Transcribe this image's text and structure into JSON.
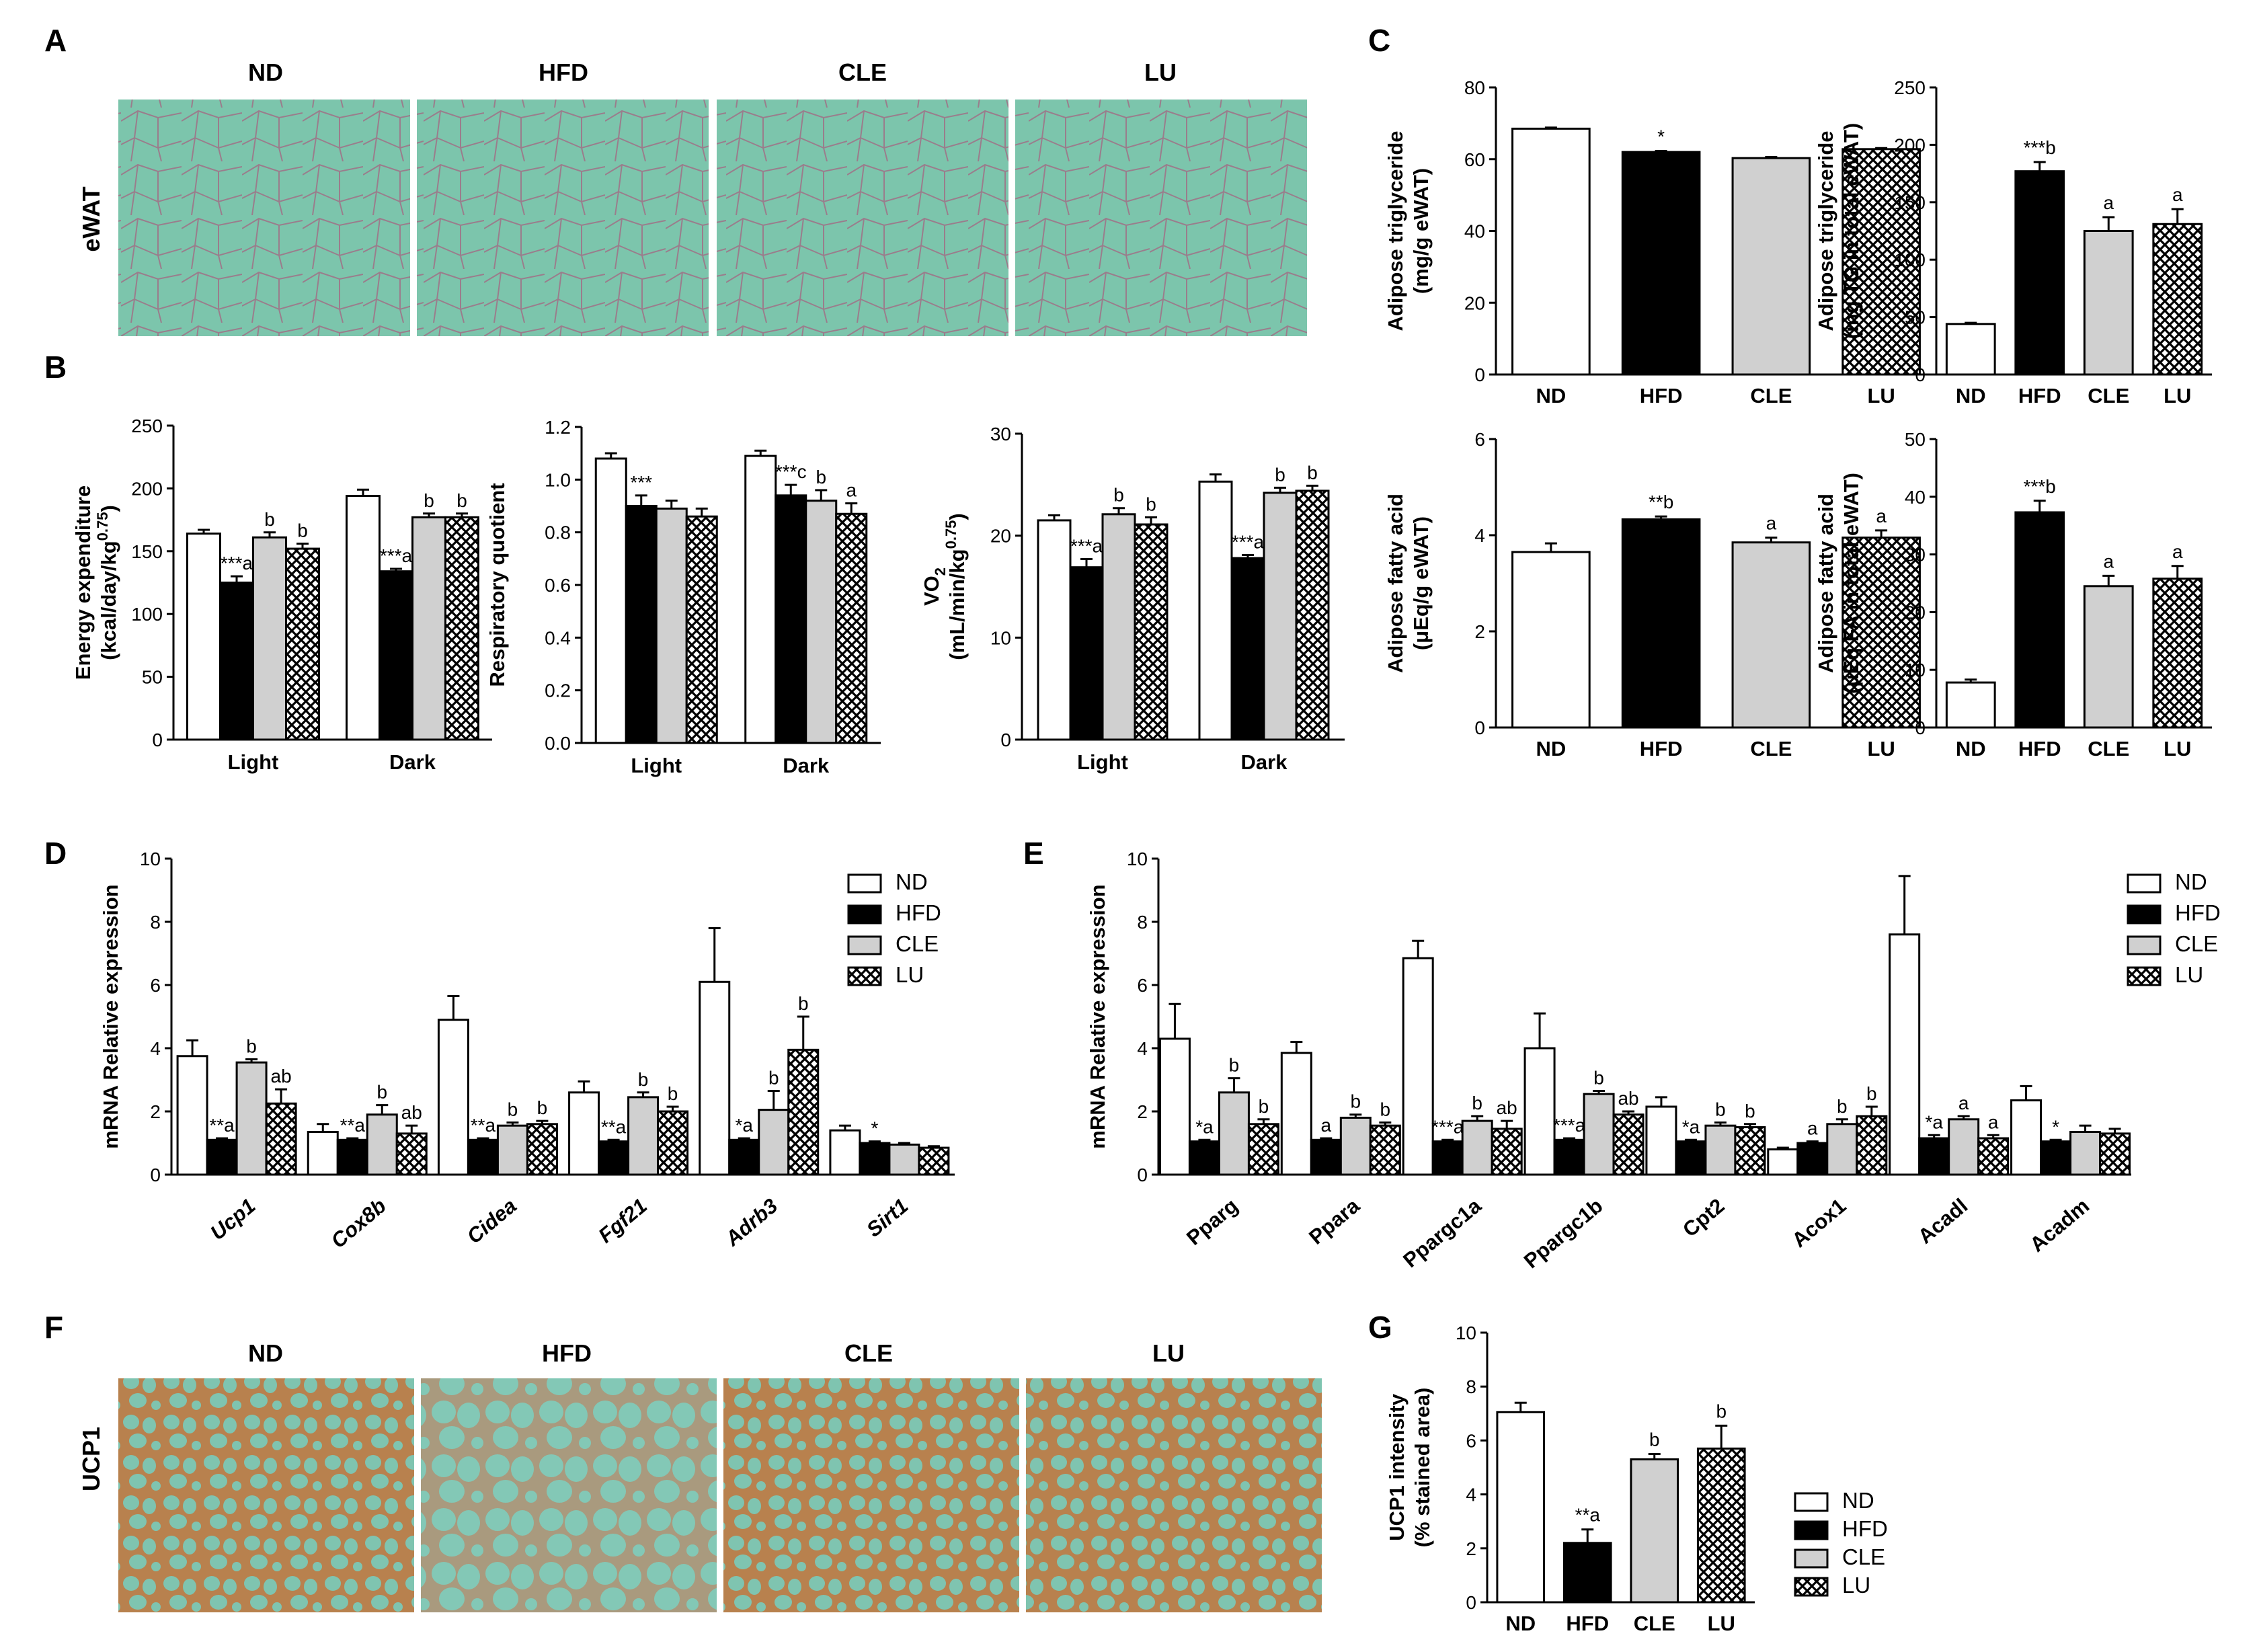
{
  "panel_labels": [
    "A",
    "B",
    "C",
    "D",
    "E",
    "F",
    "G"
  ],
  "groups": [
    "ND",
    "HFD",
    "CLE",
    "LU"
  ],
  "group_colors": {
    "ND": "#ffffff",
    "HFD": "#000000",
    "CLE": "#d0d0d0",
    "LU": "crosshatch"
  },
  "panel_a": {
    "row_label": "eWAT",
    "columns": [
      "ND",
      "HFD",
      "CLE",
      "LU"
    ]
  },
  "panel_f": {
    "row_label": "UCP1",
    "columns": [
      "ND",
      "HFD",
      "CLE",
      "LU"
    ]
  },
  "chart_data": [
    {
      "id": "B1",
      "type": "bar",
      "categories": [
        "Light",
        "Dark"
      ],
      "ylabel_lines": [
        "Energy expenditure",
        "(kcal/day/kg^0.75)"
      ],
      "ylim": [
        0,
        250
      ],
      "yticks": [
        0,
        50,
        100,
        150,
        200,
        250
      ],
      "series": [
        {
          "name": "ND",
          "values": [
            164,
            194
          ],
          "err": [
            3,
            5
          ]
        },
        {
          "name": "HFD",
          "values": [
            125,
            134
          ],
          "err": [
            5,
            2
          ]
        },
        {
          "name": "CLE",
          "values": [
            161,
            177
          ],
          "err": [
            4,
            3
          ]
        },
        {
          "name": "LU",
          "values": [
            152,
            177
          ],
          "err": [
            4,
            3
          ]
        }
      ],
      "annotations": [
        [
          "",
          "",
          ""
        ],
        [
          "***a",
          "***a"
        ],
        [
          "b",
          "b"
        ],
        [
          "b",
          "b"
        ]
      ]
    },
    {
      "id": "B2",
      "type": "bar",
      "categories": [
        "Light",
        "Dark"
      ],
      "ylabel_lines": [
        "Respiratory quotient"
      ],
      "ylim": [
        0,
        1.2
      ],
      "yticks": [
        "0.0",
        "0.2",
        "0.4",
        "0.6",
        "0.8",
        "1.0",
        "1.2"
      ],
      "series": [
        {
          "name": "ND",
          "values": [
            1.08,
            1.09
          ],
          "err": [
            0.02,
            0.02
          ]
        },
        {
          "name": "HFD",
          "values": [
            0.9,
            0.94
          ],
          "err": [
            0.04,
            0.04
          ]
        },
        {
          "name": "CLE",
          "values": [
            0.89,
            0.92
          ],
          "err": [
            0.03,
            0.04
          ]
        },
        {
          "name": "LU",
          "values": [
            0.86,
            0.87
          ],
          "err": [
            0.03,
            0.04
          ]
        }
      ],
      "annotations": [
        [
          "",
          ""
        ],
        [
          "***",
          "***c"
        ],
        [
          "",
          "b"
        ],
        [
          "",
          "a"
        ]
      ]
    },
    {
      "id": "B3",
      "type": "bar",
      "categories": [
        "Light",
        "Dark"
      ],
      "ylabel_lines": [
        "VO2",
        "(mL/min/kg^0.75)"
      ],
      "ylim": [
        0,
        30
      ],
      "yticks": [
        0,
        10,
        20,
        30
      ],
      "series": [
        {
          "name": "ND",
          "values": [
            21.5,
            25.3
          ],
          "err": [
            0.5,
            0.7
          ]
        },
        {
          "name": "HFD",
          "values": [
            16.9,
            17.8
          ],
          "err": [
            0.8,
            0.3
          ]
        },
        {
          "name": "CLE",
          "values": [
            22.1,
            24.2
          ],
          "err": [
            0.6,
            0.5
          ]
        },
        {
          "name": "LU",
          "values": [
            21.1,
            24.4
          ],
          "err": [
            0.7,
            0.5
          ]
        }
      ],
      "annotations": [
        [
          "",
          ""
        ],
        [
          "***a",
          "***a"
        ],
        [
          "b",
          "b"
        ],
        [
          "b",
          "b"
        ]
      ]
    },
    {
      "id": "C1",
      "type": "bar",
      "categories": [
        "ND",
        "HFD",
        "CLE",
        "LU"
      ],
      "ylabel_lines": [
        "Adipose triglyceride",
        "(mg/g eWAT)"
      ],
      "ylim": [
        0,
        80
      ],
      "yticks": [
        0,
        20,
        40,
        60,
        80
      ],
      "values": [
        68.5,
        62,
        60.3,
        62.8
      ],
      "err": [
        0.3,
        0.3,
        0.3,
        0.3
      ],
      "annotations": [
        "",
        "*",
        "",
        ""
      ]
    },
    {
      "id": "C2",
      "type": "bar",
      "categories": [
        "ND",
        "HFD",
        "CLE",
        "LU"
      ],
      "ylabel_lines": [
        "Adipose triglyceride",
        "(mg TG in total eWAT)"
      ],
      "ylim": [
        0,
        250
      ],
      "yticks": [
        0,
        50,
        100,
        150,
        200,
        250
      ],
      "values": [
        44,
        177,
        125,
        131
      ],
      "err": [
        1,
        8,
        12,
        13
      ],
      "annotations": [
        "",
        "***b",
        "a",
        "a"
      ]
    },
    {
      "id": "C3",
      "type": "bar",
      "categories": [
        "ND",
        "HFD",
        "CLE",
        "LU"
      ],
      "ylabel_lines": [
        "Adipose fatty acid",
        "(μEq/g eWAT)"
      ],
      "ylim": [
        0,
        6
      ],
      "yticks": [
        0,
        2,
        4,
        6
      ],
      "values": [
        3.65,
        4.33,
        3.85,
        3.95
      ],
      "err": [
        0.18,
        0.06,
        0.1,
        0.15
      ],
      "annotations": [
        "",
        "**b",
        "a",
        "a"
      ]
    },
    {
      "id": "C4",
      "type": "bar",
      "categories": [
        "ND",
        "HFD",
        "CLE",
        "LU"
      ],
      "ylabel_lines": [
        "Adipose fatty acid",
        "(μEq FA in total eWAT)"
      ],
      "ylim": [
        0,
        50
      ],
      "yticks": [
        0,
        10,
        20,
        30,
        40,
        50
      ],
      "values": [
        7.8,
        37.3,
        24.5,
        25.8
      ],
      "err": [
        0.5,
        2,
        1.8,
        2.2
      ],
      "annotations": [
        "",
        "***b",
        "a",
        "a"
      ]
    },
    {
      "id": "D",
      "type": "bar",
      "ylabel": "mRNA Relative expression",
      "ylim": [
        0,
        10
      ],
      "yticks": [
        0,
        2,
        4,
        6,
        8,
        10
      ],
      "categories": [
        "Ucp1",
        "Cox8b",
        "Cidea",
        "Fgf21",
        "Adrb3",
        "Sirt1"
      ],
      "series": [
        {
          "name": "ND",
          "values": [
            3.75,
            1.35,
            4.9,
            2.6,
            6.1,
            1.4
          ],
          "err": [
            0.5,
            0.25,
            0.75,
            0.35,
            1.7,
            0.15
          ]
        },
        {
          "name": "HFD",
          "values": [
            1.1,
            1.1,
            1.1,
            1.05,
            1.1,
            1.0
          ],
          "err": [
            0.05,
            0.05,
            0.05,
            0.05,
            0.05,
            0.05
          ]
        },
        {
          "name": "CLE",
          "values": [
            3.55,
            1.9,
            1.55,
            2.45,
            2.05,
            0.95
          ],
          "err": [
            0.1,
            0.3,
            0.1,
            0.15,
            0.6,
            0.05
          ]
        },
        {
          "name": "LU",
          "values": [
            2.25,
            1.3,
            1.6,
            2.0,
            3.95,
            0.85
          ],
          "err": [
            0.45,
            0.25,
            0.1,
            0.15,
            1.05,
            0.05
          ]
        }
      ],
      "annotations": [
        [
          "",
          "",
          "",
          "",
          "",
          ""
        ],
        [
          "**a",
          "**a",
          "**a",
          "**a",
          "*a",
          "*"
        ],
        [
          "b",
          "b",
          "b",
          "b",
          "b",
          ""
        ],
        [
          "ab",
          "ab",
          "b",
          "b",
          "b",
          ""
        ]
      ]
    },
    {
      "id": "E",
      "type": "bar",
      "ylabel": "mRNA Relative expression",
      "ylim": [
        0,
        10
      ],
      "yticks": [
        0,
        2,
        4,
        6,
        8,
        10
      ],
      "categories": [
        "Pparg",
        "Ppara",
        "Ppargc1a",
        "Ppargc1b",
        "Cpt2",
        "Acox1",
        "Acadl",
        "Acadm"
      ],
      "series": [
        {
          "name": "ND",
          "values": [
            4.3,
            3.85,
            6.85,
            4.0,
            2.15,
            0.8,
            7.6,
            2.35
          ],
          "err": [
            1.1,
            0.35,
            0.55,
            1.1,
            0.3,
            0.05,
            1.85,
            0.45
          ]
        },
        {
          "name": "HFD",
          "values": [
            1.05,
            1.1,
            1.05,
            1.1,
            1.05,
            1.0,
            1.15,
            1.05
          ],
          "err": [
            0.05,
            0.05,
            0.05,
            0.05,
            0.05,
            0.05,
            0.1,
            0.05
          ]
        },
        {
          "name": "CLE",
          "values": [
            2.6,
            1.8,
            1.7,
            2.55,
            1.55,
            1.6,
            1.75,
            1.35
          ],
          "err": [
            0.45,
            0.1,
            0.15,
            0.1,
            0.1,
            0.15,
            0.1,
            0.2
          ]
        },
        {
          "name": "LU",
          "values": [
            1.6,
            1.55,
            1.45,
            1.9,
            1.5,
            1.85,
            1.15,
            1.3
          ],
          "err": [
            0.15,
            0.1,
            0.25,
            0.1,
            0.1,
            0.3,
            0.1,
            0.15
          ]
        }
      ],
      "annotations": [
        [
          "",
          "",
          "",
          "",
          "",
          "",
          "",
          ""
        ],
        [
          "*a",
          "a",
          "***a",
          "***a",
          "*a",
          "a",
          "*a",
          "*"
        ],
        [
          "b",
          "b",
          "b",
          "b",
          "b",
          "b",
          "a",
          ""
        ],
        [
          "b",
          "b",
          "ab",
          "ab",
          "b",
          "b",
          "a",
          ""
        ]
      ]
    },
    {
      "id": "G",
      "type": "bar",
      "categories": [
        "ND",
        "HFD",
        "CLE",
        "LU"
      ],
      "ylabel_lines": [
        "UCP1 intensity",
        "(% stained area)"
      ],
      "ylim": [
        0,
        10
      ],
      "yticks": [
        0,
        2,
        4,
        6,
        8,
        10
      ],
      "values": [
        7.05,
        2.2,
        5.3,
        5.7
      ],
      "err": [
        0.35,
        0.5,
        0.2,
        0.85
      ],
      "annotations": [
        "",
        "**a",
        "b",
        "b"
      ]
    }
  ]
}
